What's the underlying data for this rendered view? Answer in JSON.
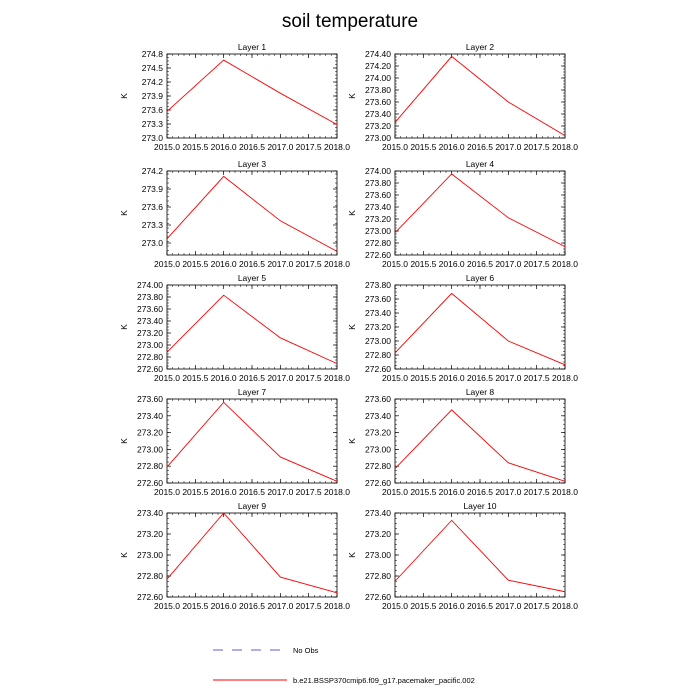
{
  "title": "soil temperature",
  "line_color": "#ff0000",
  "chart_data": [
    {
      "type": "line",
      "title": "Layer 1",
      "xlabel": "",
      "ylabel": "K",
      "x": [
        2015,
        2016,
        2017,
        2018
      ],
      "y": [
        273.57,
        274.67,
        273.96,
        273.29
      ],
      "xlim": [
        2015,
        2018
      ],
      "ylim": [
        273.0,
        274.8
      ],
      "xticks": [
        "2015.0",
        "2015.5",
        "2016.0",
        "2016.5",
        "2017.0",
        "2017.5",
        "2018.0"
      ],
      "yticks": [
        "273.0",
        "273.3",
        "273.6",
        "273.9",
        "274.2",
        "274.5",
        "274.8"
      ]
    },
    {
      "type": "line",
      "title": "Layer 2",
      "xlabel": "",
      "ylabel": "K",
      "x": [
        2015,
        2016,
        2017,
        2018
      ],
      "y": [
        273.26,
        274.36,
        273.6,
        273.04
      ],
      "xlim": [
        2015,
        2018
      ],
      "ylim": [
        273.0,
        274.4
      ],
      "xticks": [
        "2015.0",
        "2015.5",
        "2016.0",
        "2016.5",
        "2017.0",
        "2017.5",
        "2018.0"
      ],
      "yticks": [
        "273.00",
        "273.20",
        "273.40",
        "273.60",
        "273.80",
        "274.00",
        "274.20",
        "274.40"
      ]
    },
    {
      "type": "line",
      "title": "Layer 3",
      "xlabel": "",
      "ylabel": "K",
      "x": [
        2015,
        2016,
        2017,
        2018
      ],
      "y": [
        273.07,
        274.11,
        273.37,
        272.86
      ],
      "xlim": [
        2015,
        2018
      ],
      "ylim": [
        272.8,
        274.2
      ],
      "xticks": [
        "2015.0",
        "2015.5",
        "2016.0",
        "2016.5",
        "2017.0",
        "2017.5",
        "2018.0"
      ],
      "yticks": [
        "273.0",
        "273.3",
        "273.6",
        "273.9",
        "274.2"
      ]
    },
    {
      "type": "line",
      "title": "Layer 4",
      "xlabel": "",
      "ylabel": "K",
      "x": [
        2015,
        2016,
        2017,
        2018
      ],
      "y": [
        272.97,
        273.95,
        273.22,
        272.74
      ],
      "xlim": [
        2015,
        2018
      ],
      "ylim": [
        272.6,
        274.0
      ],
      "xticks": [
        "2015.0",
        "2015.5",
        "2016.0",
        "2016.5",
        "2017.0",
        "2017.5",
        "2018.0"
      ],
      "yticks": [
        "272.60",
        "272.80",
        "273.00",
        "273.20",
        "273.40",
        "273.60",
        "273.80",
        "274.00"
      ]
    },
    {
      "type": "line",
      "title": "Layer 5",
      "xlabel": "",
      "ylabel": "K",
      "x": [
        2015,
        2016,
        2017,
        2018
      ],
      "y": [
        272.88,
        273.83,
        273.12,
        272.69
      ],
      "xlim": [
        2015,
        2018
      ],
      "ylim": [
        272.6,
        274.0
      ],
      "xticks": [
        "2015.0",
        "2015.5",
        "2016.0",
        "2016.5",
        "2017.0",
        "2017.5",
        "2018.0"
      ],
      "yticks": [
        "272.60",
        "272.80",
        "273.00",
        "273.20",
        "273.40",
        "273.60",
        "273.80",
        "274.00"
      ]
    },
    {
      "type": "line",
      "title": "Layer 6",
      "xlabel": "",
      "ylabel": "K",
      "x": [
        2015,
        2016,
        2017,
        2018
      ],
      "y": [
        272.83,
        273.68,
        273.0,
        272.66
      ],
      "xlim": [
        2015,
        2018
      ],
      "ylim": [
        272.6,
        273.8
      ],
      "xticks": [
        "2015.0",
        "2015.5",
        "2016.0",
        "2016.5",
        "2017.0",
        "2017.5",
        "2018.0"
      ],
      "yticks": [
        "272.60",
        "272.80",
        "273.00",
        "273.20",
        "273.40",
        "273.60",
        "273.80"
      ]
    },
    {
      "type": "line",
      "title": "Layer 7",
      "xlabel": "",
      "ylabel": "K",
      "x": [
        2015,
        2016,
        2017,
        2018
      ],
      "y": [
        272.79,
        273.56,
        272.91,
        272.62
      ],
      "xlim": [
        2015,
        2018
      ],
      "ylim": [
        272.6,
        273.6
      ],
      "xticks": [
        "2015.0",
        "2015.5",
        "2016.0",
        "2016.5",
        "2017.0",
        "2017.5",
        "2018.0"
      ],
      "yticks": [
        "272.60",
        "272.80",
        "273.00",
        "273.20",
        "273.40",
        "273.60"
      ]
    },
    {
      "type": "line",
      "title": "Layer 8",
      "xlabel": "",
      "ylabel": "K",
      "x": [
        2015,
        2016,
        2017,
        2018
      ],
      "y": [
        272.77,
        273.47,
        272.84,
        272.62
      ],
      "xlim": [
        2015,
        2018
      ],
      "ylim": [
        272.6,
        273.6
      ],
      "xticks": [
        "2015.0",
        "2015.5",
        "2016.0",
        "2016.5",
        "2017.0",
        "2017.5",
        "2018.0"
      ],
      "yticks": [
        "272.60",
        "272.80",
        "273.00",
        "273.20",
        "273.40",
        "273.60"
      ]
    },
    {
      "type": "line",
      "title": "Layer 9",
      "xlabel": "",
      "ylabel": "K",
      "x": [
        2015,
        2016,
        2017,
        2018
      ],
      "y": [
        272.77,
        273.4,
        272.79,
        272.64
      ],
      "xlim": [
        2015,
        2018
      ],
      "ylim": [
        272.6,
        273.4
      ],
      "xticks": [
        "2015.0",
        "2015.5",
        "2016.0",
        "2016.5",
        "2017.0",
        "2017.5",
        "2018.0"
      ],
      "yticks": [
        "272.60",
        "272.80",
        "273.00",
        "273.20",
        "273.40"
      ]
    },
    {
      "type": "line",
      "title": "Layer 10",
      "xlabel": "",
      "ylabel": "K",
      "x": [
        2015,
        2016,
        2017,
        2018
      ],
      "y": [
        272.75,
        273.33,
        272.76,
        272.65
      ],
      "xlim": [
        2015,
        2018
      ],
      "ylim": [
        272.6,
        273.4
      ],
      "xticks": [
        "2015.0",
        "2015.5",
        "2016.0",
        "2016.5",
        "2017.0",
        "2017.5",
        "2018.0"
      ],
      "yticks": [
        "272.60",
        "272.80",
        "273.00",
        "273.20",
        "273.40"
      ]
    }
  ],
  "legend": [
    {
      "label": "No Obs",
      "style": "dashed",
      "color": "#6a5acd"
    },
    {
      "label": "b.e21.BSSP370cmip6.f09_g17.pacemaker_pacific.002",
      "style": "solid",
      "color": "#ff0000"
    }
  ]
}
